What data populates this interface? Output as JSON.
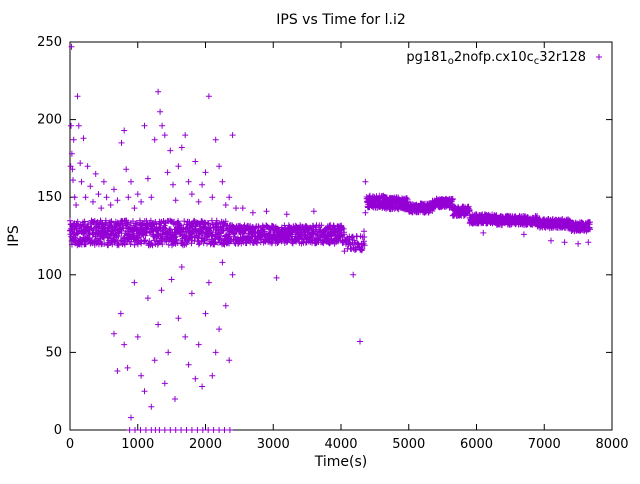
{
  "chart_data": {
    "type": "scatter",
    "title": "IPS vs Time for l.i2",
    "xlabel": "Time(s)",
    "ylabel": "IPS",
    "xlim": [
      0,
      8000
    ],
    "ylim": [
      0,
      250
    ],
    "xticks": [
      0,
      1000,
      2000,
      3000,
      4000,
      5000,
      6000,
      7000,
      8000
    ],
    "yticks": [
      0,
      50,
      100,
      150,
      200,
      250
    ],
    "grid": false,
    "legend_position": "top-right-inside",
    "border_color": "#000000",
    "series": [
      {
        "name": "pg181_o2nofp.cx10c_c32r128",
        "label_segments": [
          {
            "t": "pg181"
          },
          {
            "t": "o",
            "sub": true
          },
          {
            "t": "2nofp.cx10c"
          },
          {
            "t": "c",
            "sub": true
          },
          {
            "t": "32r128"
          }
        ],
        "color": "#9400d3",
        "marker": "plus",
        "bands": [
          {
            "x0": 0,
            "x1": 2300,
            "step": 6,
            "y": 127,
            "jitter": 8,
            "rows": 2
          },
          {
            "x0": 2300,
            "x1": 4050,
            "step": 6,
            "y": 126,
            "jitter": 6,
            "rows": 2
          },
          {
            "x0": 4050,
            "x1": 4350,
            "step": 6,
            "y": 120,
            "jitter": 5,
            "rows": 1
          },
          {
            "x0": 4380,
            "x1": 4660,
            "step": 6,
            "y": 147,
            "jitter": 4,
            "rows": 2
          },
          {
            "x0": 4660,
            "x1": 5000,
            "step": 6,
            "y": 146,
            "jitter": 4,
            "rows": 2
          },
          {
            "x0": 5000,
            "x1": 5350,
            "step": 6,
            "y": 143,
            "jitter": 3,
            "rows": 2
          },
          {
            "x0": 5350,
            "x1": 5650,
            "step": 6,
            "y": 146,
            "jitter": 3,
            "rows": 2
          },
          {
            "x0": 5380,
            "x1": 5650,
            "step": 8,
            "y": 148,
            "jitter": 1,
            "rows": 1
          },
          {
            "x0": 5650,
            "x1": 5900,
            "step": 6,
            "y": 141,
            "jitter": 3,
            "rows": 2
          },
          {
            "x0": 5900,
            "x1": 6300,
            "step": 6,
            "y": 136,
            "jitter": 3,
            "rows": 2
          },
          {
            "x0": 6300,
            "x1": 6900,
            "step": 6,
            "y": 135,
            "jitter": 3,
            "rows": 2
          },
          {
            "x0": 6900,
            "x1": 7400,
            "step": 6,
            "y": 133,
            "jitter": 3,
            "rows": 2
          },
          {
            "x0": 7400,
            "x1": 7680,
            "step": 6,
            "y": 131,
            "jitter": 3,
            "rows": 2
          }
        ],
        "points": [
          [
            10,
            170
          ],
          [
            15,
            196
          ],
          [
            22,
            247
          ],
          [
            28,
            178
          ],
          [
            35,
            168
          ],
          [
            45,
            161
          ],
          [
            55,
            187
          ],
          [
            70,
            150
          ],
          [
            90,
            145
          ],
          [
            110,
            215
          ],
          [
            130,
            196
          ],
          [
            150,
            172
          ],
          [
            170,
            160
          ],
          [
            200,
            188
          ],
          [
            230,
            150
          ],
          [
            260,
            170
          ],
          [
            300,
            157
          ],
          [
            340,
            147
          ],
          [
            380,
            165
          ],
          [
            420,
            152
          ],
          [
            460,
            143
          ],
          [
            500,
            160
          ],
          [
            540,
            150
          ],
          [
            600,
            145
          ],
          [
            650,
            155
          ],
          [
            700,
            148
          ],
          [
            760,
            185
          ],
          [
            800,
            193
          ],
          [
            830,
            168
          ],
          [
            860,
            150
          ],
          [
            900,
            160
          ],
          [
            950,
            143
          ],
          [
            1000,
            152
          ],
          [
            1050,
            147
          ],
          [
            1100,
            196
          ],
          [
            1150,
            162
          ],
          [
            1200,
            150
          ],
          [
            1250,
            187
          ],
          [
            1300,
            218
          ],
          [
            1330,
            205
          ],
          [
            1360,
            196
          ],
          [
            1400,
            190
          ],
          [
            1440,
            166
          ],
          [
            1480,
            180
          ],
          [
            1520,
            158
          ],
          [
            1560,
            148
          ],
          [
            1600,
            170
          ],
          [
            1650,
            182
          ],
          [
            1700,
            190
          ],
          [
            1750,
            160
          ],
          [
            1800,
            152
          ],
          [
            1850,
            173
          ],
          [
            1900,
            147
          ],
          [
            1950,
            158
          ],
          [
            2000,
            166
          ],
          [
            2050,
            215
          ],
          [
            2100,
            150
          ],
          [
            2150,
            187
          ],
          [
            2200,
            170
          ],
          [
            2250,
            160
          ],
          [
            2300,
            145
          ],
          [
            2350,
            150
          ],
          [
            2400,
            190
          ],
          [
            2450,
            143
          ],
          [
            2550,
            143
          ],
          [
            2700,
            140
          ],
          [
            2900,
            141
          ],
          [
            3200,
            139
          ],
          [
            3600,
            141
          ],
          [
            4360,
            160
          ],
          [
            650,
            62
          ],
          [
            700,
            38
          ],
          [
            750,
            75
          ],
          [
            800,
            55
          ],
          [
            850,
            40
          ],
          [
            900,
            8
          ],
          [
            950,
            95
          ],
          [
            1000,
            60
          ],
          [
            1050,
            35
          ],
          [
            1100,
            25
          ],
          [
            1150,
            85
          ],
          [
            1200,
            15
          ],
          [
            1250,
            45
          ],
          [
            1300,
            68
          ],
          [
            1350,
            90
          ],
          [
            1400,
            30
          ],
          [
            1450,
            50
          ],
          [
            1500,
            97
          ],
          [
            1550,
            20
          ],
          [
            1600,
            72
          ],
          [
            1650,
            105
          ],
          [
            1700,
            60
          ],
          [
            1750,
            42
          ],
          [
            1800,
            88
          ],
          [
            1850,
            33
          ],
          [
            1900,
            55
          ],
          [
            1950,
            28
          ],
          [
            2000,
            75
          ],
          [
            2050,
            95
          ],
          [
            2100,
            35
          ],
          [
            2150,
            50
          ],
          [
            2200,
            65
          ],
          [
            2250,
            108
          ],
          [
            2300,
            80
          ],
          [
            2350,
            45
          ],
          [
            2400,
            100
          ],
          [
            3050,
            98
          ],
          [
            4180,
            100
          ],
          [
            4280,
            57
          ],
          [
            880,
            0
          ],
          [
            960,
            0
          ],
          [
            1040,
            0
          ],
          [
            1120,
            0
          ],
          [
            1200,
            0
          ],
          [
            1260,
            0
          ],
          [
            1320,
            0
          ],
          [
            1400,
            0
          ],
          [
            1480,
            0
          ],
          [
            1560,
            0
          ],
          [
            1640,
            0
          ],
          [
            1720,
            0
          ],
          [
            1800,
            0
          ],
          [
            1880,
            0
          ],
          [
            1960,
            0
          ],
          [
            2040,
            0
          ],
          [
            2120,
            0
          ],
          [
            2200,
            0
          ],
          [
            2280,
            0
          ],
          [
            2360,
            0
          ],
          [
            6100,
            127
          ],
          [
            6700,
            126
          ],
          [
            7100,
            122
          ],
          [
            7300,
            121
          ],
          [
            7500,
            120
          ],
          [
            7650,
            121
          ],
          [
            4340,
            128
          ],
          [
            4360,
            140
          ]
        ]
      }
    ]
  }
}
